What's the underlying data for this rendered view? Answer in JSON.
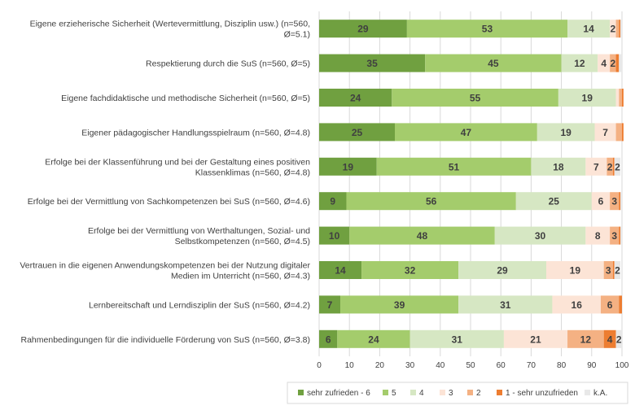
{
  "chart_data": {
    "type": "bar",
    "orientation": "horizontal",
    "stacked": true,
    "categories": [
      [
        "Eigene erzieherische Sicherheit (Wertevermittlung, Disziplin usw.) (n=560,",
        "Ø=5.1)"
      ],
      [
        "Respektierung durch die SuS (n=560, Ø=5)"
      ],
      [
        "Eigene fachdidaktische und methodische Sicherheit (n=560, Ø=5)"
      ],
      [
        "Eigener pädagogischer Handlungsspielraum (n=560, Ø=4.8)"
      ],
      [
        "Erfolge bei der Klassenführung und bei der Gestaltung eines positiven",
        "Klassenklimas (n=560, Ø=4.8)"
      ],
      [
        "Erfolge bei der Vermittlung von Sachkompetenzen bei SuS (n=560, Ø=4.6)"
      ],
      [
        "Erfolge bei der Vermittlung von Werthaltungen, Sozial- und",
        "Selbstkompetenzen (n=560, Ø=4.5)"
      ],
      [
        "Vertrauen in die eigenen Anwendungskompetenzen bei der Nutzung digitaler",
        "Medien im Unterricht (n=560, Ø=4.3)"
      ],
      [
        "Lernbereitschaft und Lerndisziplin der SuS (n=560, Ø=4.2)"
      ],
      [
        "Rahmenbedingungen für die individuelle Förderung von SuS (n=560, Ø=3.8)"
      ]
    ],
    "series": [
      {
        "name": "sehr zufrieden - 6",
        "color": "#70a040",
        "values": [
          29,
          35,
          24,
          25,
          19,
          9,
          10,
          14,
          7,
          6
        ]
      },
      {
        "name": "5",
        "color": "#a4cc6c",
        "values": [
          53,
          45,
          55,
          47,
          51,
          56,
          48,
          32,
          39,
          24
        ]
      },
      {
        "name": "4",
        "color": "#d6e7c3",
        "values": [
          14,
          12,
          19,
          19,
          18,
          25,
          30,
          29,
          31,
          31
        ]
      },
      {
        "name": "3",
        "color": "#fce4d6",
        "values": [
          2,
          4,
          1,
          7,
          7,
          6,
          8,
          19,
          16,
          21
        ]
      },
      {
        "name": "2",
        "color": "#f4b183",
        "values": [
          1,
          2,
          1,
          2,
          2,
          3,
          3,
          3,
          6,
          12
        ]
      },
      {
        "name": "1 - sehr unzufrieden",
        "color": "#ed7d31",
        "values": [
          0.5,
          1,
          0.5,
          0.5,
          0.5,
          0.5,
          0.5,
          0.5,
          1,
          4
        ]
      },
      {
        "name": "k.A.",
        "color": "#e8e8e8",
        "values": [
          0.5,
          1,
          0,
          0,
          2,
          0.5,
          0.5,
          2,
          0,
          2
        ]
      }
    ],
    "data_labels": [
      [
        "29",
        "53",
        "14",
        "2",
        "",
        "",
        ""
      ],
      [
        "35",
        "45",
        "12",
        "4",
        "2",
        "",
        ""
      ],
      [
        "24",
        "55",
        "19",
        "",
        "",
        "",
        ""
      ],
      [
        "25",
        "47",
        "19",
        "7",
        "",
        "",
        ""
      ],
      [
        "19",
        "51",
        "18",
        "7",
        "2",
        "",
        "2"
      ],
      [
        "9",
        "56",
        "25",
        "6",
        "3",
        "",
        ""
      ],
      [
        "10",
        "48",
        "30",
        "8",
        "3",
        "",
        ""
      ],
      [
        "14",
        "32",
        "29",
        "19",
        "3",
        "",
        "2"
      ],
      [
        "7",
        "39",
        "31",
        "16",
        "6",
        "",
        ""
      ],
      [
        "6",
        "24",
        "31",
        "21",
        "12",
        "4",
        "2"
      ]
    ],
    "x_ticks": [
      "0",
      "10",
      "20",
      "30",
      "40",
      "50",
      "60",
      "70",
      "80",
      "90",
      "100"
    ],
    "xlim": [
      0,
      100
    ],
    "grid": true,
    "legend_position": "bottom-right"
  }
}
